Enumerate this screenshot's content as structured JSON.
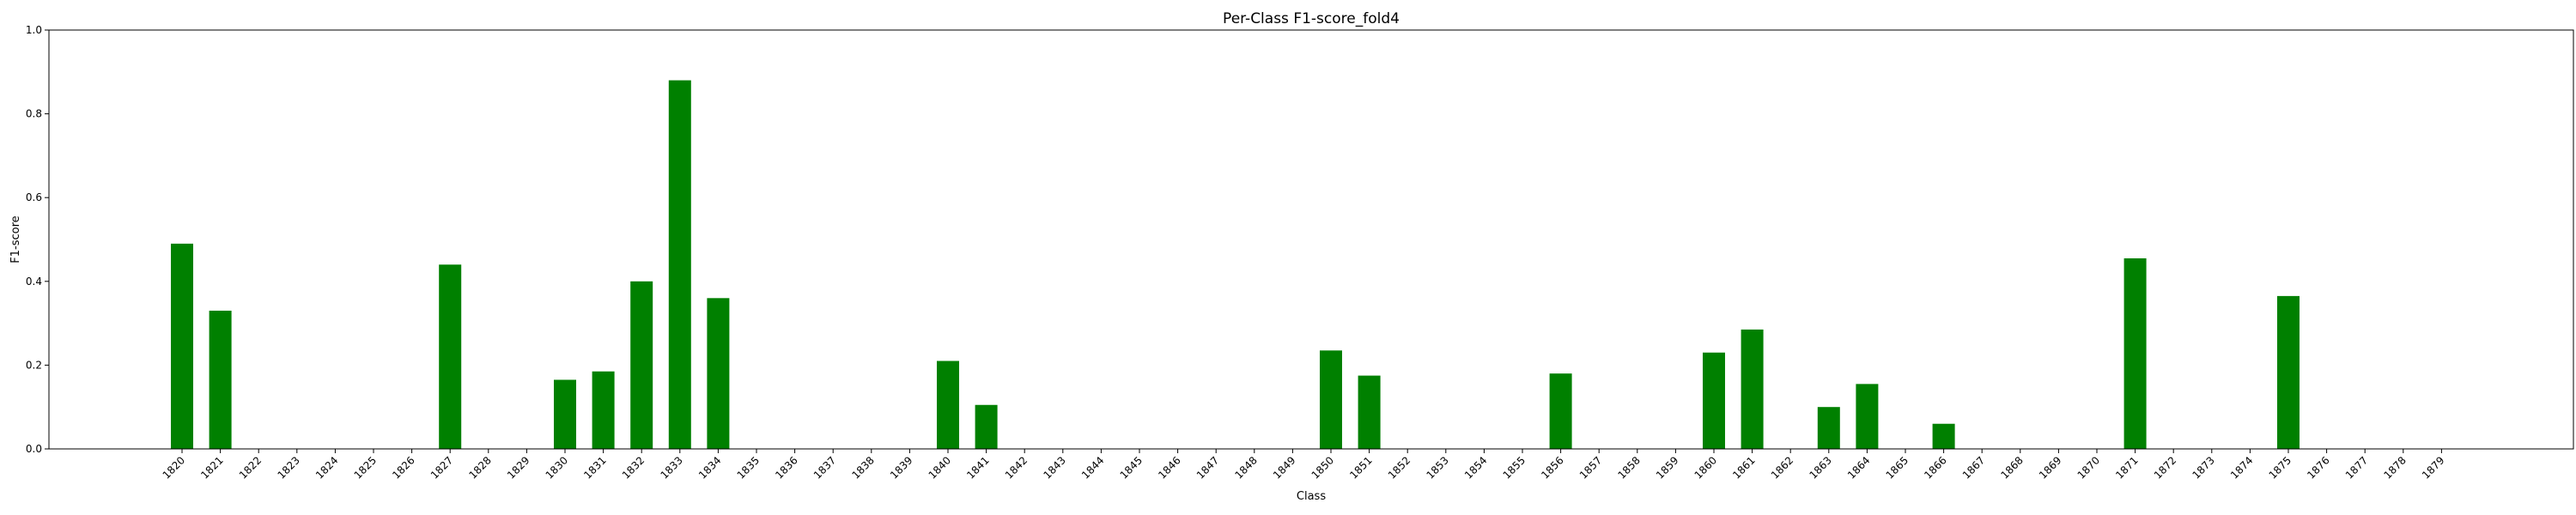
{
  "chart_data": {
    "type": "bar",
    "title": "Per-Class F1-score_fold4",
    "xlabel": "Class",
    "ylabel": "F1-score",
    "ylim": [
      0,
      1.0
    ],
    "yticks": [
      "0.0",
      "0.2",
      "0.4",
      "0.6",
      "0.8",
      "1.0"
    ],
    "bar_color": "#008000",
    "categories": [
      "1820",
      "1821",
      "1822",
      "1823",
      "1824",
      "1825",
      "1826",
      "1827",
      "1828",
      "1829",
      "1830",
      "1831",
      "1832",
      "1833",
      "1834",
      "1835",
      "1836",
      "1837",
      "1838",
      "1839",
      "1840",
      "1841",
      "1842",
      "1843",
      "1844",
      "1845",
      "1846",
      "1847",
      "1848",
      "1849",
      "1850",
      "1851",
      "1852",
      "1853",
      "1854",
      "1855",
      "1856",
      "1857",
      "1858",
      "1859",
      "1860",
      "1861",
      "1862",
      "1863",
      "1864",
      "1865",
      "1866",
      "1867",
      "1868",
      "1869",
      "1870",
      "1871",
      "1872",
      "1873",
      "1874",
      "1875",
      "1876",
      "1877",
      "1878",
      "1879"
    ],
    "values": [
      0.49,
      0.33,
      0,
      0,
      0,
      0,
      0,
      0.44,
      0,
      0,
      0.165,
      0.185,
      0.4,
      0.88,
      0.36,
      0,
      0,
      0,
      0,
      0,
      0.21,
      0.105,
      0,
      0,
      0,
      0,
      0,
      0,
      0,
      0,
      0.235,
      0.175,
      0,
      0,
      0,
      0,
      0.18,
      0,
      0,
      0,
      0.23,
      0.285,
      0,
      0.1,
      0.155,
      0,
      0.06,
      0,
      0,
      0,
      0,
      0.455,
      0,
      0,
      0,
      0.365,
      0,
      0,
      0,
      0
    ]
  }
}
